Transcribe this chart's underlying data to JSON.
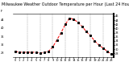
{
  "title": "Milwaukee Weather Outdoor Temperature per Hour (Last 24 Hours)",
  "hours": [
    0,
    1,
    2,
    3,
    4,
    5,
    6,
    7,
    8,
    9,
    10,
    11,
    12,
    13,
    14,
    15,
    16,
    17,
    18,
    19,
    20,
    21,
    22,
    23
  ],
  "temps": [
    29.0,
    28.5,
    28.5,
    28.5,
    28.5,
    28.5,
    28.0,
    28.5,
    29.0,
    31.0,
    34.5,
    38.0,
    42.0,
    45.0,
    44.5,
    43.0,
    41.0,
    38.5,
    36.5,
    34.0,
    32.0,
    30.5,
    29.0,
    27.5
  ],
  "line_color": "#ff0000",
  "marker_color": "#000000",
  "bg_color": "#ffffff",
  "plot_bg": "#ffffff",
  "grid_color": "#888888",
  "title_color": "#000000",
  "ylim": [
    26,
    47
  ],
  "yticks_right": [
    28,
    30,
    32,
    34,
    36,
    38,
    40,
    42,
    44,
    46
  ],
  "yticks_left": [
    28,
    32,
    36,
    40,
    44
  ],
  "xlim": [
    -0.5,
    23.5
  ],
  "xtick_labels": [
    "0",
    "1",
    "2",
    "3",
    "4",
    "5",
    "6",
    "7",
    "8",
    "9",
    "10",
    "11",
    "12",
    "13",
    "14",
    "15",
    "16",
    "17",
    "18",
    "19",
    "20",
    "21",
    "22",
    "23"
  ],
  "vgrid_positions": [
    3,
    6,
    9,
    12,
    15,
    18,
    21
  ],
  "ylabel_left": "F",
  "title_fontsize": 3.5,
  "label_fontsize": 2.8,
  "tick_fontsize": 2.5,
  "line_width": 0.7,
  "marker_size": 1.2
}
